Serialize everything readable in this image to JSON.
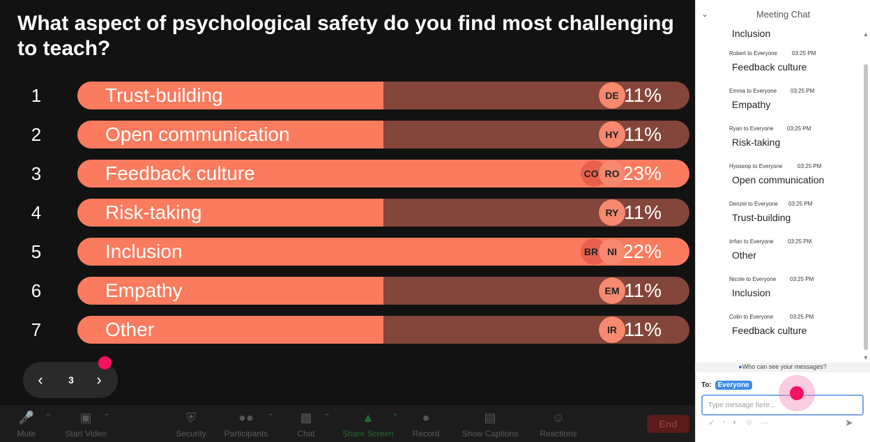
{
  "question": "What aspect of psychological safety do you find most challenging to teach?",
  "results": [
    {
      "rank": "1",
      "label": "Trust-building",
      "percent": "11%",
      "fill": 0.5,
      "avatars": [
        "DE"
      ]
    },
    {
      "rank": "2",
      "label": "Open communication",
      "percent": "11%",
      "fill": 0.5,
      "avatars": [
        "HY"
      ]
    },
    {
      "rank": "3",
      "label": "Feedback culture",
      "percent": "23%",
      "fill": 1.0,
      "avatars": [
        "RO",
        "CO"
      ]
    },
    {
      "rank": "4",
      "label": "Risk-taking",
      "percent": "11%",
      "fill": 0.5,
      "avatars": [
        "RY"
      ]
    },
    {
      "rank": "5",
      "label": "Inclusion",
      "percent": "22%",
      "fill": 1.0,
      "avatars": [
        "NI",
        "BR"
      ]
    },
    {
      "rank": "6",
      "label": "Empathy",
      "percent": "11%",
      "fill": 0.5,
      "avatars": [
        "EM"
      ]
    },
    {
      "rank": "7",
      "label": "Other",
      "percent": "11%",
      "fill": 0.5,
      "avatars": [
        "IR"
      ]
    }
  ],
  "pager": {
    "page": "3",
    "prev_icon": "chevron-left-icon",
    "next_icon": "chevron-right-icon"
  },
  "toolbar": {
    "mute": "Mute",
    "start_video": "Start Video",
    "security": "Security",
    "participants": "Participants",
    "chat": "Chat",
    "share_screen": "Share Screen",
    "record": "Record",
    "show_captions": "Show Captions",
    "reactions": "Reactions",
    "end": "End"
  },
  "chat": {
    "title": "Meeting Chat",
    "messages": [
      {
        "sender": "",
        "time": "",
        "text": "Inclusion"
      },
      {
        "sender": "Robert to Everyone",
        "time": "03:25 PM",
        "text": "Feedback culture"
      },
      {
        "sender": "Emma to Everyone",
        "time": "03:25 PM",
        "text": "Empathy"
      },
      {
        "sender": "Ryan to Everyone",
        "time": "03:25 PM",
        "text": "Risk-taking"
      },
      {
        "sender": "Hyoseop to Everyone",
        "time": "03:25 PM",
        "text": "Open communication"
      },
      {
        "sender": "Denzel to Everyone",
        "time": "03:25 PM",
        "text": "Trust-building"
      },
      {
        "sender": "Irrfan to Everyone",
        "time": "03:25 PM",
        "text": "Other"
      },
      {
        "sender": "Nicole to Everyone",
        "time": "03:25 PM",
        "text": "Inclusion"
      },
      {
        "sender": "Colin to Everyone",
        "time": "03:25 PM",
        "text": "Feedback culture"
      }
    ],
    "who_can_see": "Who can see your messages?",
    "to_label": "To:",
    "to_value": "Everyone",
    "input_placeholder": "Type message here...",
    "input_value": ""
  },
  "colors": {
    "bar_fill": "#fa7b5e",
    "bar_track": "#84463a",
    "accent_pink": "#f3125e",
    "badge_blue": "#3d8ae8"
  }
}
